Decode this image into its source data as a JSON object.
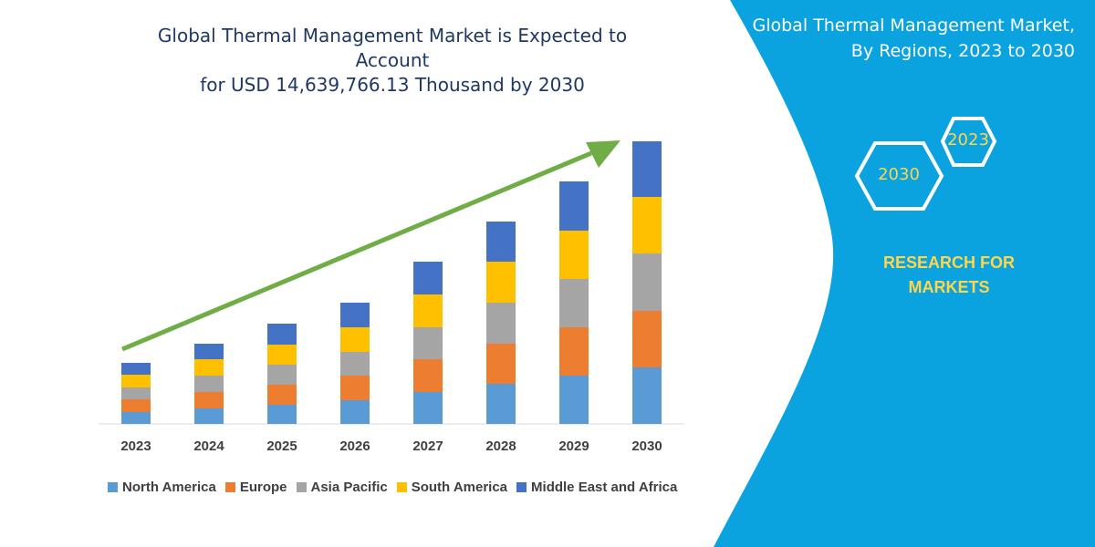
{
  "title": {
    "line1": "Global Thermal Management Market is Expected to Account",
    "line2": "for USD 14,639,766.13 Thousand by 2030"
  },
  "panel": {
    "title_line1": "Global Thermal Management Market,",
    "title_line2": "By Regions, 2023 to 2030",
    "hex_2023": "2023",
    "hex_2030": "2030",
    "brand_line1": "RESEARCH FOR",
    "brand_line2": "MARKETS",
    "background_color": "#0aa3e0"
  },
  "chart_data": {
    "type": "bar",
    "stacked": true,
    "categories": [
      "2023",
      "2024",
      "2025",
      "2026",
      "2027",
      "2028",
      "2029",
      "2030"
    ],
    "series": [
      {
        "name": "North America",
        "color": "#5b9bd5",
        "values": [
          13,
          17,
          21,
          26,
          35,
          44,
          53,
          62
        ]
      },
      {
        "name": "Europe",
        "color": "#ed7d31",
        "values": [
          14,
          18,
          22,
          27,
          36,
          44,
          53,
          62
        ]
      },
      {
        "name": "Asia Pacific",
        "color": "#a5a5a5",
        "values": [
          13,
          18,
          22,
          26,
          35,
          45,
          53,
          63
        ]
      },
      {
        "name": "South America",
        "color": "#ffc000",
        "values": [
          14,
          18,
          22,
          27,
          36,
          45,
          53,
          62
        ]
      },
      {
        "name": "Middle East and Africa",
        "color": "#4472c4",
        "values": [
          13,
          17,
          23,
          27,
          36,
          44,
          54,
          61
        ]
      }
    ],
    "trend_arrow_color": "#70ad47",
    "gridlines": false,
    "y_axis_shown": false,
    "legend_position": "bottom"
  }
}
